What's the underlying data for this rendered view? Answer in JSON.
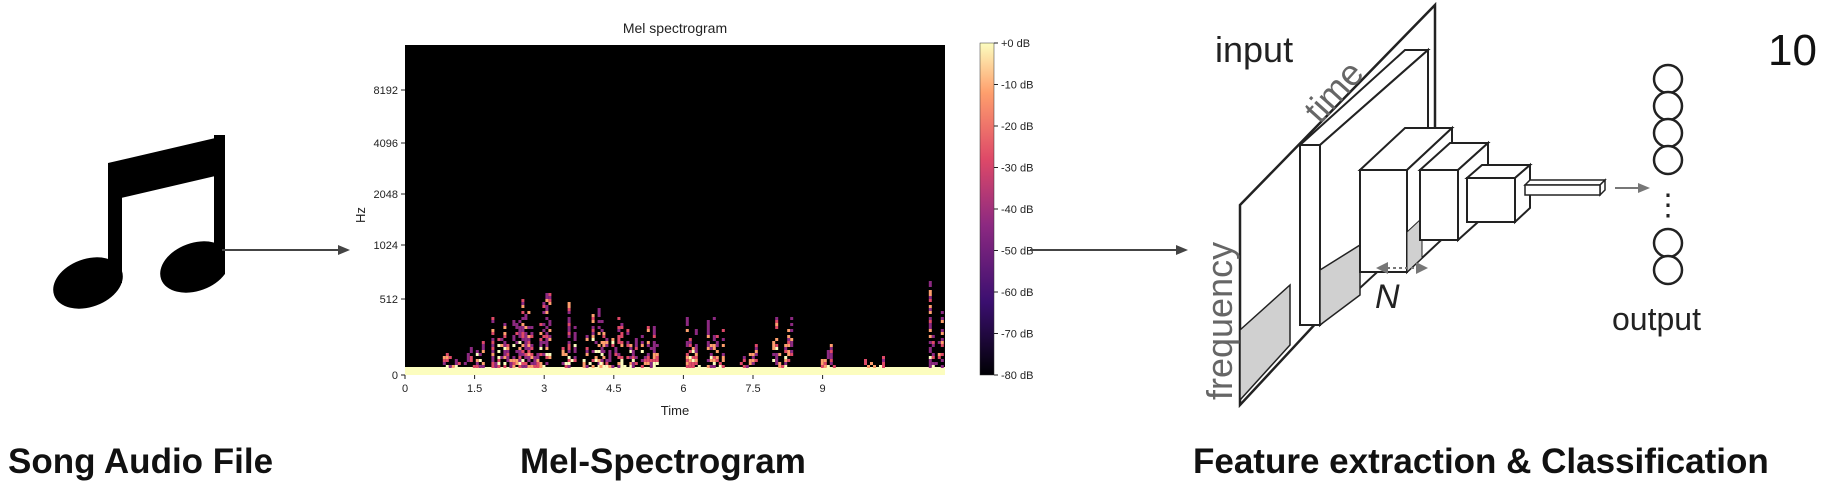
{
  "page_number": "10",
  "icons": {
    "audio": "music-note-icon"
  },
  "captions": {
    "audio": "Song Audio File",
    "spectrogram": "Mel-Spectrogram",
    "cnn": "Feature extraction & Classification"
  },
  "spectrogram": {
    "title": "Mel spectrogram",
    "ylabel": "Hz",
    "xlabel": "Time",
    "y_ticks": [
      "8192",
      "4096",
      "2048",
      "1024",
      "512",
      "0"
    ],
    "x_ticks": [
      "0",
      "1.5",
      "3",
      "4.5",
      "6",
      "7.5",
      "9"
    ],
    "colorbar_ticks": [
      "+0 dB",
      "-10 dB",
      "-20 dB",
      "-30 dB",
      "-40 dB",
      "-50 dB",
      "-60 dB",
      "-70 dB",
      "-80 dB"
    ],
    "colormap": [
      "#000004",
      "#3b0f70",
      "#8c2981",
      "#de4968",
      "#fe9f6d",
      "#fcfdbf"
    ]
  },
  "cnn": {
    "input_label": "input",
    "time_label": "time",
    "frequency_label": "frequency",
    "filter_label": "N",
    "output_label": "output",
    "ellipsis": "⋮"
  }
}
